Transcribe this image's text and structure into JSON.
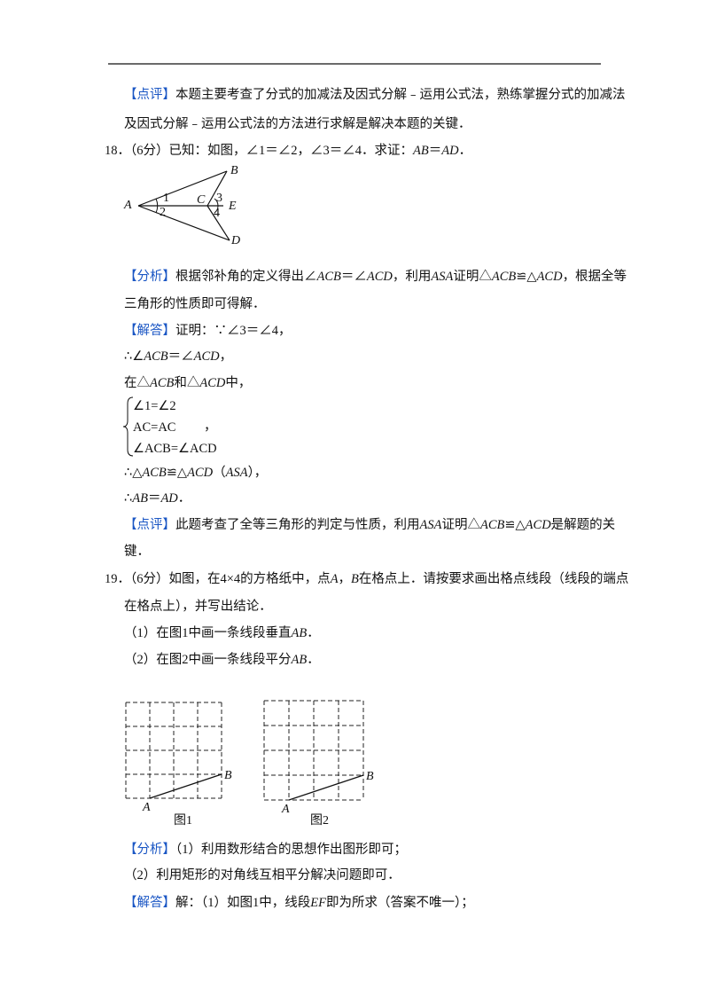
{
  "blocks": [
    {
      "segments": [
        {
          "label": "【点评】"
        },
        "本题主要考查了分式的加减法及因式分解﹣运用公式法，熟练掌握分式的加减法"
      ]
    },
    {
      "segments": [
        "及因式分解﹣运用公式法的方法进行求解是解决本题的关键．"
      ]
    },
    {
      "segments": [
        "18．（6分）已知：如图，∠1＝∠2，∠3＝∠4．求证：",
        {
          "math": "AB"
        },
        "＝",
        {
          "math": "AD"
        },
        "．"
      ]
    },
    {
      "triangle_labels": {
        "A": "A",
        "B": "B",
        "C": "C",
        "D": "D",
        "E": "E",
        "1": "1",
        "2": "2",
        "3": "3",
        "4": "4"
      }
    },
    {
      "segments": [
        {
          "label": "【分析】"
        },
        "根据邻补角的定义得出∠",
        {
          "math": "ACB"
        },
        "＝∠",
        {
          "math": "ACD"
        },
        "，利用",
        {
          "math": "ASA"
        },
        "证明△",
        {
          "math": "ACB"
        },
        "≌△",
        {
          "math": "ACD"
        },
        "，根据全等"
      ]
    },
    {
      "segments": [
        "三角形的性质即可得解．"
      ]
    },
    {
      "segments": [
        {
          "label": "【解答】"
        },
        "证明：∵∠3＝∠4，"
      ]
    },
    {
      "segments": [
        "∴∠",
        {
          "math": "ACB"
        },
        "＝∠",
        {
          "math": "ACD"
        },
        "，"
      ]
    },
    {
      "segments": [
        "在△",
        {
          "math": "ACB"
        },
        "和△",
        {
          "math": "ACD"
        },
        "中，"
      ]
    },
    {
      "system": [
        "∠1=∠2",
        "AC=AC",
        "∠ACB=∠ACD"
      ],
      "tail": "，"
    },
    {
      "segments": [
        "∴△",
        {
          "math": "ACB"
        },
        "≌△",
        {
          "math": "ACD"
        },
        "（",
        {
          "math": "ASA"
        },
        "），"
      ]
    },
    {
      "segments": [
        "∴",
        {
          "math": "AB"
        },
        "＝",
        {
          "math": "AD"
        },
        "．"
      ]
    },
    {
      "segments": [
        {
          "label": "【点评】"
        },
        "此题考查了全等三角形的判定与性质，利用",
        {
          "math": "ASA"
        },
        "证明△",
        {
          "math": "ACB"
        },
        "≌△",
        {
          "math": "ACD"
        },
        "是解题的关"
      ]
    },
    {
      "segments": [
        "键．"
      ]
    },
    {
      "segments": [
        "19．（6分）如图，在4×4的方格纸中，点",
        {
          "math": "A"
        },
        "，",
        {
          "math": "B"
        },
        "在格点上．请按要求画出格点线段（线段的端点"
      ]
    },
    {
      "segments": [
        "在格点上），并写出结论．"
      ]
    },
    {
      "segments": [
        "（1）在图1中画一条线段垂直",
        {
          "math": "AB"
        },
        "．"
      ]
    },
    {
      "segments": [
        "（2）在图2中画一条线段平分",
        {
          "math": "AB"
        },
        "．"
      ]
    },
    {
      "grids": [
        {
          "A": "A",
          "B": "B",
          "caption": "图1"
        },
        {
          "A": "A",
          "B": "B",
          "caption": "图2"
        }
      ]
    },
    {
      "segments": [
        {
          "label": "【分析】"
        },
        "（1）利用数形结合的思想作出图形即可；"
      ]
    },
    {
      "segments": [
        "（2）利用矩形的对角线互相平分解决问题即可．"
      ]
    },
    {
      "segments": [
        {
          "label": "【解答】"
        },
        "解：（1）如图1中，线段",
        {
          "math": "EF"
        },
        "即为所求（答案不唯一）；"
      ]
    }
  ]
}
